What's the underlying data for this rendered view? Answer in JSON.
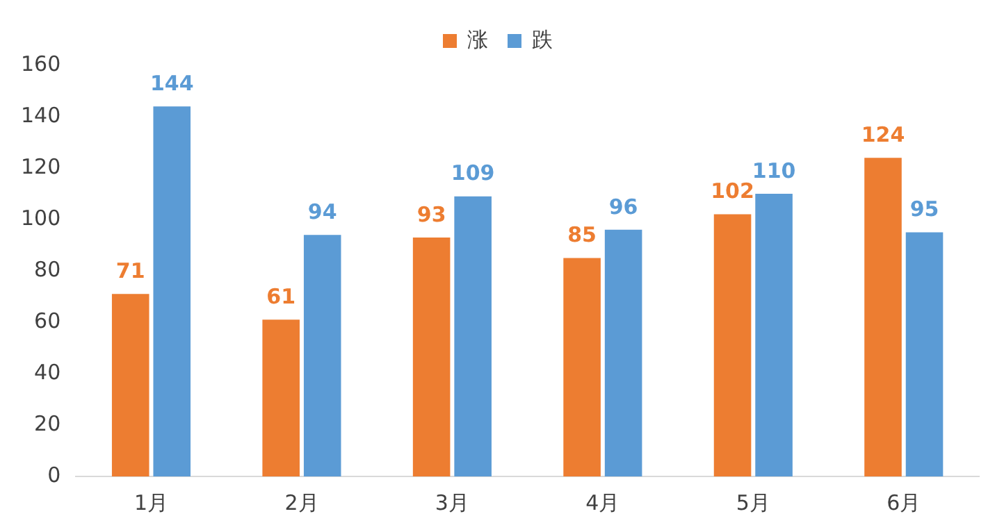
{
  "chart_data": {
    "type": "bar",
    "categories": [
      "1月",
      "2月",
      "3月",
      "4月",
      "5月",
      "6月"
    ],
    "series": [
      {
        "name": "涨",
        "color": "#ed7d31",
        "values": [
          71,
          61,
          93,
          85,
          102,
          124
        ]
      },
      {
        "name": "跌",
        "color": "#5b9bd5",
        "values": [
          144,
          94,
          109,
          96,
          110,
          95
        ]
      }
    ],
    "ylim": [
      0,
      160
    ],
    "yticks": [
      0,
      20,
      40,
      60,
      80,
      100,
      120,
      140,
      160
    ],
    "grid": false,
    "legend": "top",
    "data_labels": true
  }
}
